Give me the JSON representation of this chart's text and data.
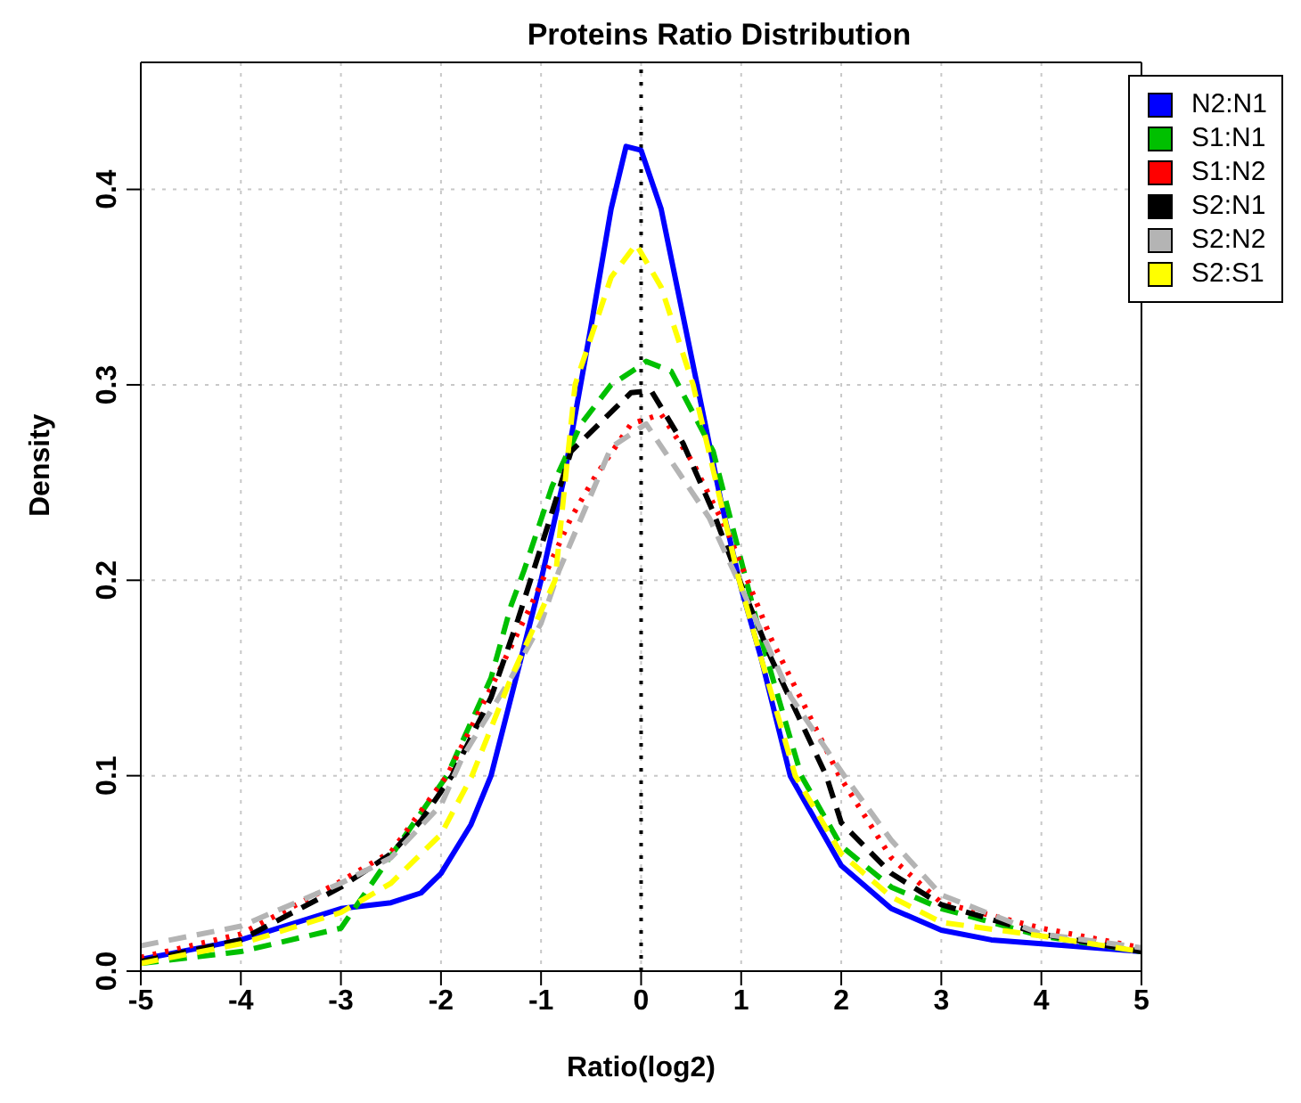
{
  "chart_data": {
    "type": "line",
    "title": "Proteins Ratio Distribution",
    "xlabel": "Ratio(log2)",
    "ylabel": "Density",
    "xlim": [
      -5,
      5
    ],
    "xticks": [
      -5,
      -4,
      -3,
      -2,
      -1,
      0,
      1,
      2,
      3,
      4,
      5
    ],
    "ylim": [
      0,
      0.465
    ],
    "yticks": [
      {
        "value": 0,
        "label": "0.0"
      },
      0.1,
      0.2,
      0.3,
      0.4
    ],
    "grid": true,
    "legend": "top right",
    "marker": "none",
    "ref_lines": [
      {
        "axis": "x",
        "value": 0,
        "color": "#000000",
        "line_style": "dotted"
      }
    ],
    "series": [
      {
        "name": "N2:N1",
        "color": "#0000ff",
        "line_style": "solid",
        "x": [
          -5,
          -4,
          -3,
          -2.5,
          -2.2,
          -2,
          -1.7,
          -1.5,
          -1.2,
          -1,
          -0.78,
          -0.5,
          -0.3,
          -0.15,
          0,
          0.2,
          0.4,
          0.6,
          0.8,
          1,
          1.2,
          1.49,
          2,
          2.5,
          3,
          3.5,
          4,
          5
        ],
        "values": [
          0.006,
          0.016,
          0.032,
          0.035,
          0.04,
          0.05,
          0.075,
          0.1,
          0.16,
          0.2,
          0.25,
          0.33,
          0.39,
          0.422,
          0.42,
          0.39,
          0.34,
          0.29,
          0.24,
          0.196,
          0.16,
          0.1,
          0.054,
          0.032,
          0.021,
          0.016,
          0.014,
          0.01
        ]
      },
      {
        "name": "S1:N1",
        "color": "#00c000",
        "line_style": "dashed",
        "x": [
          -5,
          -4,
          -3,
          -2.5,
          -1.94,
          -1.5,
          -1.3,
          -1.17,
          -0.89,
          -0.6,
          -0.3,
          0,
          0.05,
          0.3,
          0.72,
          0.92,
          1.2,
          1.6,
          2,
          2.5,
          3,
          4,
          5
        ],
        "values": [
          0.004,
          0.01,
          0.022,
          0.059,
          0.1,
          0.15,
          0.187,
          0.205,
          0.248,
          0.28,
          0.3,
          0.31,
          0.312,
          0.307,
          0.266,
          0.226,
          0.17,
          0.1,
          0.064,
          0.043,
          0.032,
          0.018,
          0.01
        ]
      },
      {
        "name": "S1:N2",
        "color": "#ff0000",
        "line_style": "dotted",
        "x": [
          -5,
          -4,
          -3,
          -2.5,
          -1.94,
          -1.5,
          -1.12,
          -0.7,
          -0.46,
          -0.1,
          0.2,
          0.52,
          0.88,
          1.3,
          1.98,
          2.5,
          3,
          4,
          5
        ],
        "values": [
          0.007,
          0.019,
          0.046,
          0.061,
          0.1,
          0.145,
          0.185,
          0.232,
          0.253,
          0.28,
          0.285,
          0.26,
          0.223,
          0.17,
          0.1,
          0.058,
          0.035,
          0.022,
          0.012
        ]
      },
      {
        "name": "S2:N1",
        "color": "#000000",
        "line_style": "dashed",
        "x": [
          -5,
          -4,
          -3,
          -2.5,
          -2.2,
          -1.89,
          -1.5,
          -1.23,
          -0.92,
          -0.7,
          -0.1,
          0.1,
          0.42,
          0.72,
          0.92,
          1.3,
          1.85,
          2,
          2.5,
          3,
          4,
          5
        ],
        "values": [
          0.005,
          0.016,
          0.043,
          0.06,
          0.077,
          0.1,
          0.14,
          0.18,
          0.23,
          0.266,
          0.296,
          0.297,
          0.27,
          0.235,
          0.208,
          0.16,
          0.1,
          0.076,
          0.05,
          0.034,
          0.019,
          0.01
        ]
      },
      {
        "name": "S2:N2",
        "color": "#b4b4b4",
        "line_style": "dashed",
        "x": [
          -5,
          -4,
          -3,
          -2.5,
          -2,
          -1.78,
          -1.3,
          -1.0,
          -0.82,
          -0.3,
          0.05,
          0.68,
          1.03,
          1.5,
          2.03,
          2.5,
          3,
          4,
          5
        ],
        "values": [
          0.013,
          0.023,
          0.045,
          0.058,
          0.085,
          0.11,
          0.15,
          0.178,
          0.205,
          0.268,
          0.28,
          0.232,
          0.193,
          0.14,
          0.1,
          0.067,
          0.039,
          0.019,
          0.012
        ]
      },
      {
        "name": "S2:S1",
        "color": "#ffff00",
        "line_style": "dashed",
        "x": [
          -5,
          -4,
          -3,
          -2.5,
          -2,
          -1.69,
          -1.3,
          -0.86,
          -0.66,
          -0.3,
          -0.05,
          0.2,
          0.52,
          0.98,
          1.2,
          1.54,
          2,
          2.5,
          3,
          4,
          5
        ],
        "values": [
          0.004,
          0.014,
          0.03,
          0.045,
          0.07,
          0.1,
          0.15,
          0.2,
          0.3,
          0.355,
          0.372,
          0.35,
          0.3,
          0.2,
          0.16,
          0.1,
          0.06,
          0.038,
          0.025,
          0.018,
          0.01
        ]
      }
    ]
  }
}
